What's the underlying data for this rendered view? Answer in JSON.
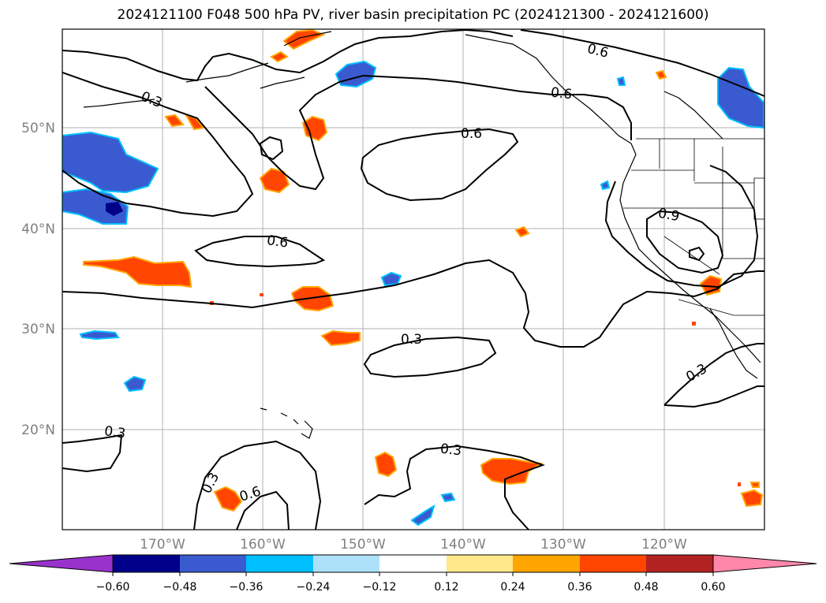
{
  "title": "2024121100 F048 500 hPa PV, river basin precipitation PC (2024121300 - 2024121600)",
  "latitude_labels": [
    "50°N",
    "40°N",
    "30°N",
    "20°N"
  ],
  "longitude_labels": [
    "170°W",
    "160°W",
    "150°W",
    "140°W",
    "130°W",
    "120°W"
  ],
  "contour_labels": [
    "0.3",
    "0.6",
    "0.6",
    "0.6",
    "0.6",
    "0.3",
    "0.9",
    "0.3",
    "0.3",
    "0.3",
    "0.3",
    "0.6"
  ],
  "colorbar": {
    "tick_labels": [
      "−0.60",
      "−0.48",
      "−0.36",
      "−0.24",
      "−0.12",
      "0.12",
      "0.24",
      "0.36",
      "0.48",
      "0.60"
    ],
    "colors": [
      "#9932CC",
      "#00008B",
      "#3A5BCF",
      "#00BFFF",
      "#ADE1FA",
      "#FFFFFF",
      "#FFE98A",
      "#FFA500",
      "#FF4500",
      "#B22222",
      "#FF88AA"
    ]
  },
  "field_colors": {
    "positive_fill": "#FF4500",
    "positive_edge": "#FFA500",
    "negative_fill": "#3A5BCF",
    "negative_edge": "#00BFFF"
  }
}
